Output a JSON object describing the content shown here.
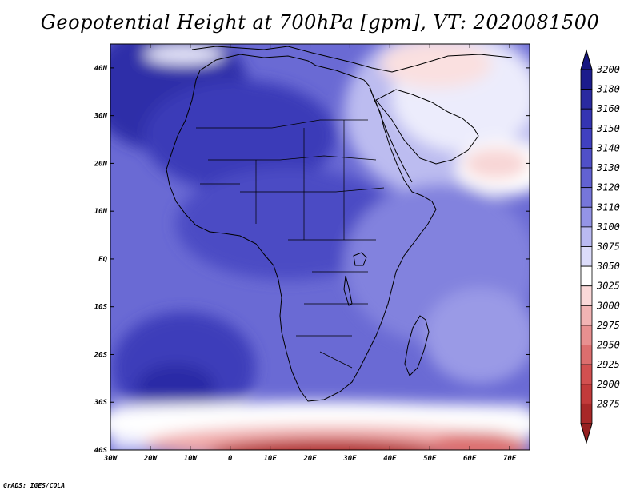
{
  "title": "Geopotential Height at 700hPa [gpm], VT: 2020081500",
  "credit": "GrADS: IGES/COLA",
  "map": {
    "lon_range": [
      -30,
      75
    ],
    "lat_range": [
      -40,
      45
    ],
    "lon_ticks": [
      {
        "lon": -30,
        "label": "30W"
      },
      {
        "lon": -20,
        "label": "20W"
      },
      {
        "lon": -10,
        "label": "10W"
      },
      {
        "lon": 0,
        "label": "0"
      },
      {
        "lon": 10,
        "label": "10E"
      },
      {
        "lon": 20,
        "label": "20E"
      },
      {
        "lon": 30,
        "label": "30E"
      },
      {
        "lon": 40,
        "label": "40E"
      },
      {
        "lon": 50,
        "label": "50E"
      },
      {
        "lon": 60,
        "label": "60E"
      },
      {
        "lon": 70,
        "label": "70E"
      }
    ],
    "lat_ticks": [
      {
        "lat": 40,
        "label": "40N"
      },
      {
        "lat": 30,
        "label": "30N"
      },
      {
        "lat": 20,
        "label": "20N"
      },
      {
        "lat": 10,
        "label": "10N"
      },
      {
        "lat": 0,
        "label": "EQ"
      },
      {
        "lat": -10,
        "label": "10S"
      },
      {
        "lat": -20,
        "label": "20S"
      },
      {
        "lat": -30,
        "label": "30S"
      },
      {
        "lat": -40,
        "label": "40S"
      }
    ]
  },
  "colorbar": {
    "levels": [
      {
        "label": "3200",
        "color": "#1c1c8c"
      },
      {
        "label": "3180",
        "color": "#2a2aa0"
      },
      {
        "label": "3160",
        "color": "#3434b2"
      },
      {
        "label": "3150",
        "color": "#4040c0"
      },
      {
        "label": "3140",
        "color": "#5050c8"
      },
      {
        "label": "3130",
        "color": "#6262d2"
      },
      {
        "label": "3120",
        "color": "#7676da"
      },
      {
        "label": "3110",
        "color": "#9494e6"
      },
      {
        "label": "3100",
        "color": "#babaf2"
      },
      {
        "label": "3075",
        "color": "#dcdcfa"
      },
      {
        "label": "3050",
        "color": "#ffffff"
      },
      {
        "label": "3025",
        "color": "#fad8d8"
      },
      {
        "label": "3000",
        "color": "#f2b4b4"
      },
      {
        "label": "2975",
        "color": "#e89090"
      },
      {
        "label": "2950",
        "color": "#dc6e6e"
      },
      {
        "label": "2925",
        "color": "#d25050"
      },
      {
        "label": "2900",
        "color": "#c23a3a"
      },
      {
        "label": "2875",
        "color": "#a82828"
      }
    ],
    "top_arrow_color": "#161680",
    "bottom_arrow_color": "#962020"
  },
  "colors": {
    "land_outline": "#000000",
    "frame": "#000000"
  }
}
